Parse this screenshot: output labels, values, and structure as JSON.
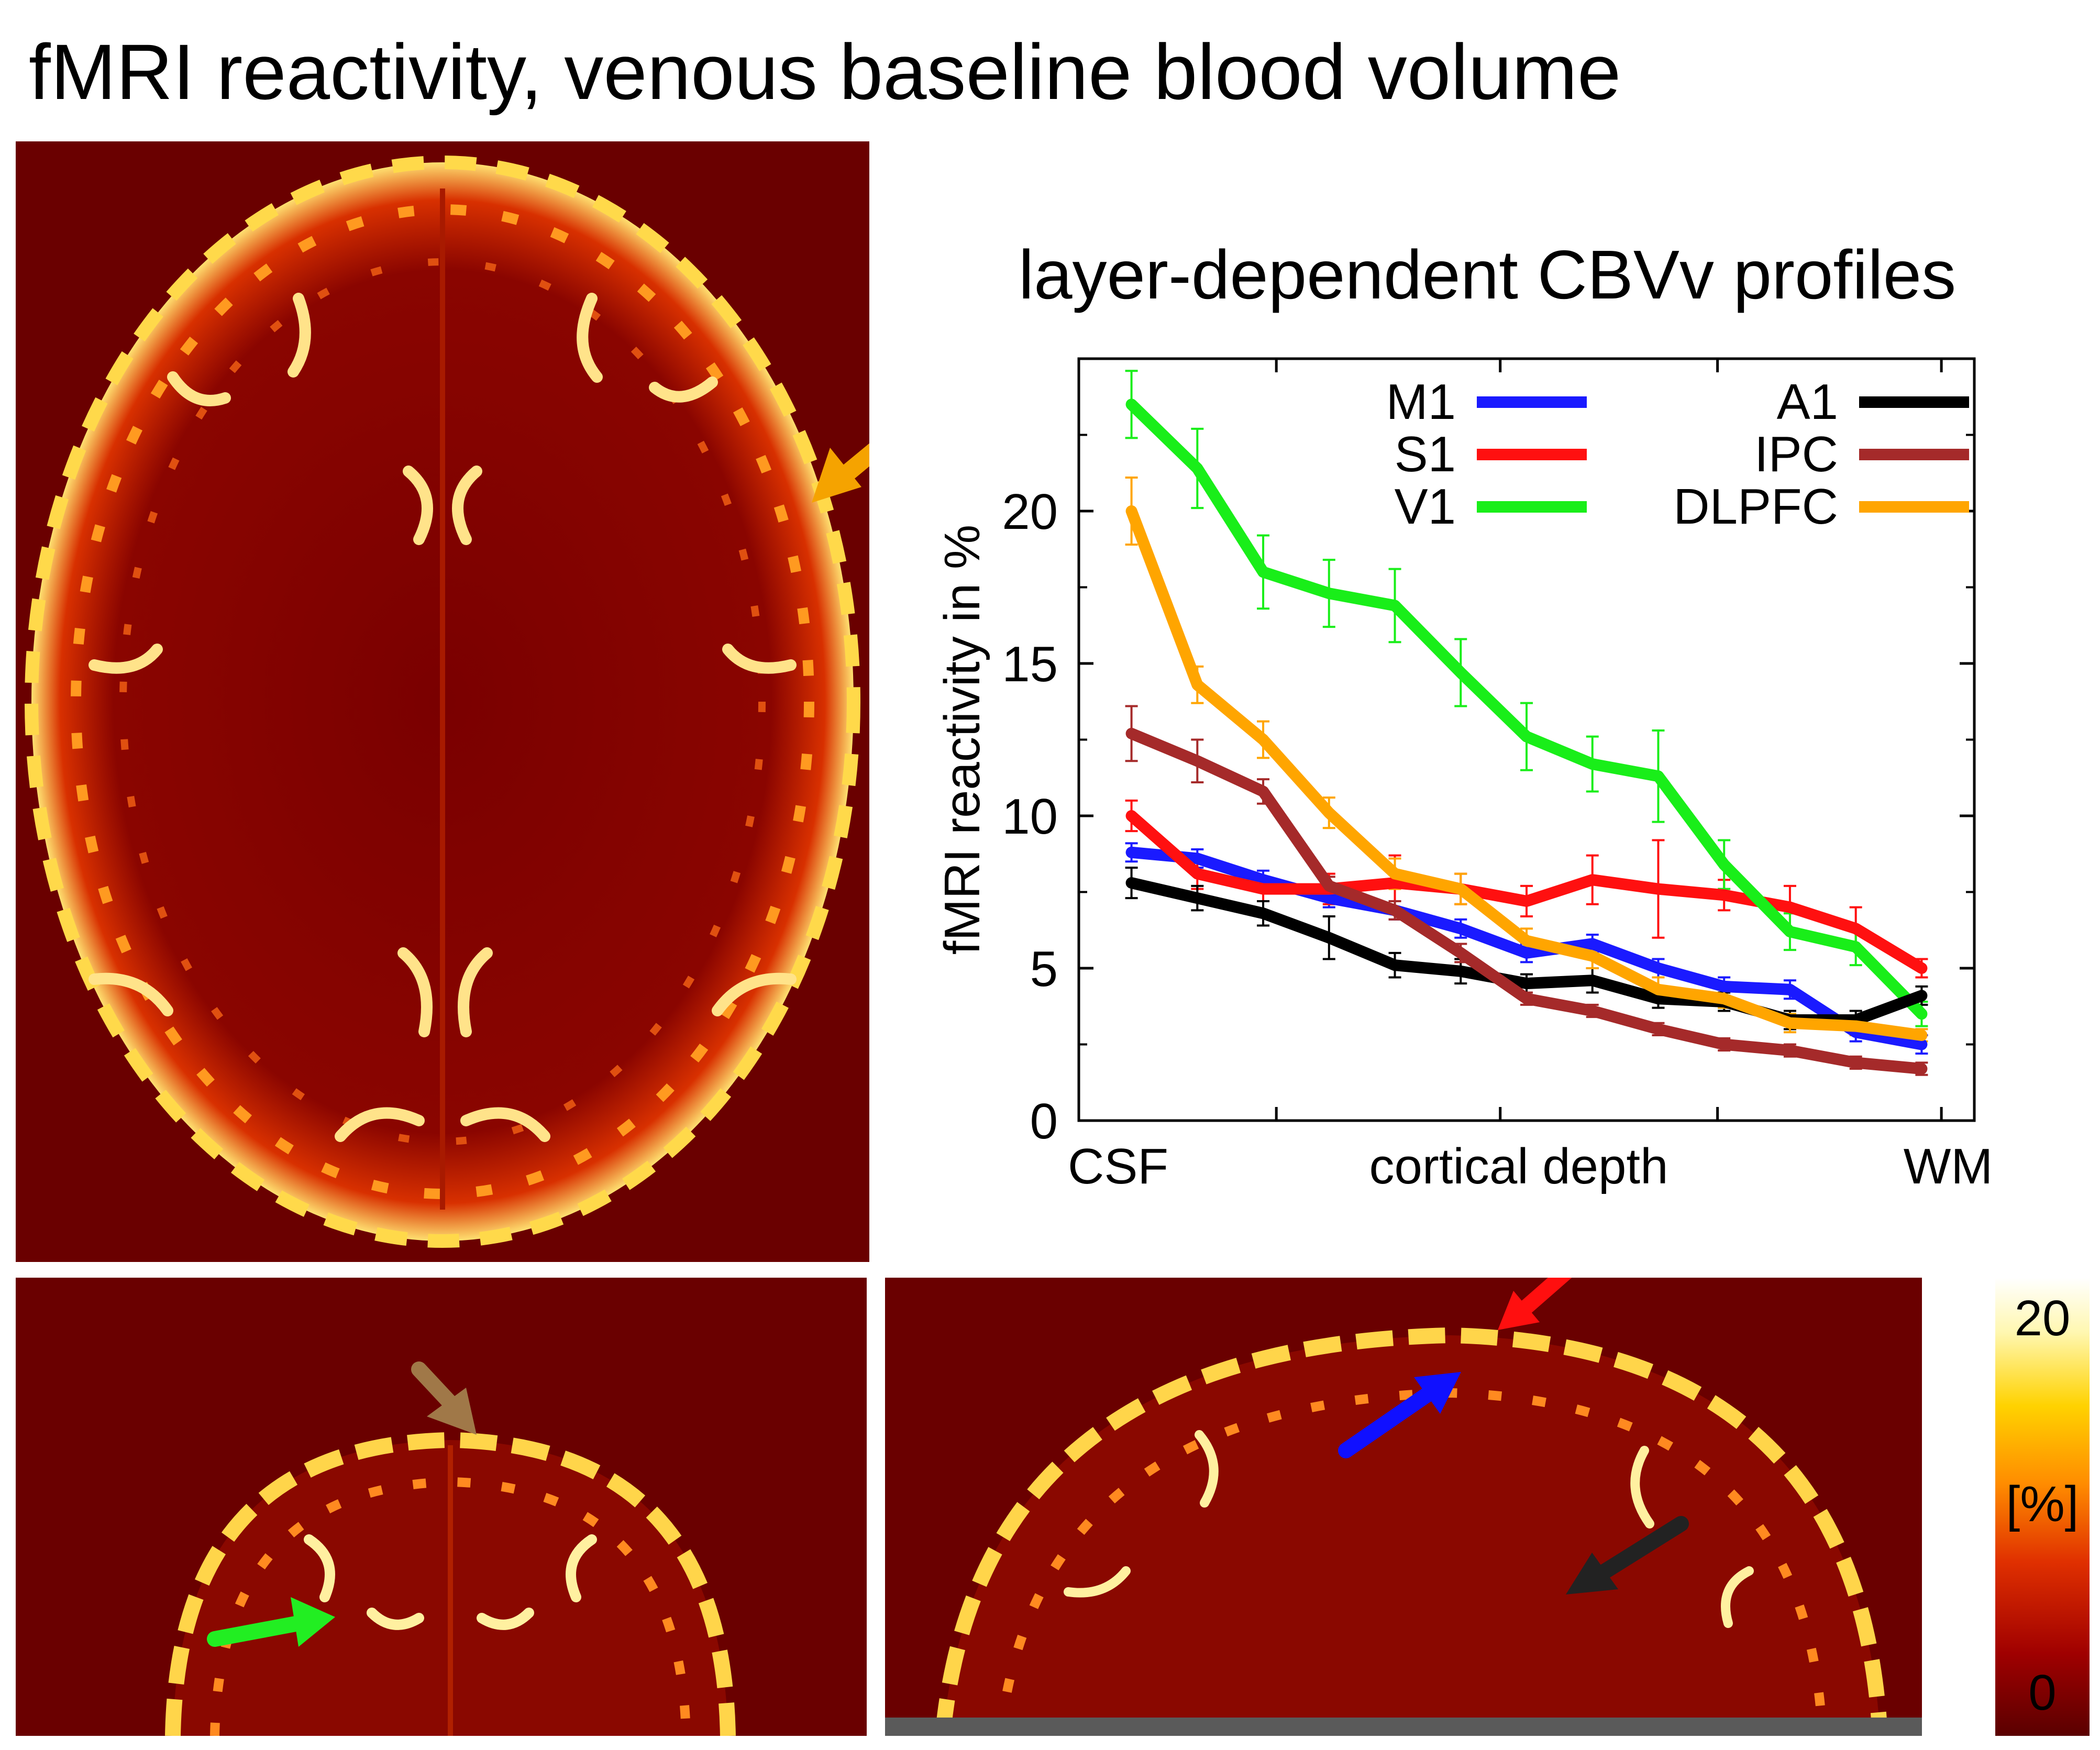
{
  "title": "fMRI reactivity, venous baseline blood volume",
  "colorbar": {
    "max_label": "20",
    "unit_label": "[%]",
    "min_label": "0"
  },
  "arrows": {
    "axial": {
      "color": "#f5a300"
    },
    "coronal": [
      {
        "color": "#a07848"
      },
      {
        "color": "#22ee22"
      }
    ],
    "sagittal": [
      {
        "color": "#ff0f0f"
      },
      {
        "color": "#1010ff"
      },
      {
        "color": "#222222"
      }
    ]
  },
  "chart_data": {
    "type": "line",
    "title": "layer-dependent CBVv profiles",
    "xlabel": "cortical depth",
    "ylabel": "fMRI reactivity in %",
    "x_tick_labels": {
      "left": "CSF",
      "right": "WM"
    },
    "ylim": [
      0,
      25
    ],
    "y_ticks": [
      0,
      5,
      10,
      15,
      20
    ],
    "x": [
      1,
      2,
      3,
      4,
      5,
      6,
      7,
      8,
      9,
      10,
      11,
      12,
      13
    ],
    "series": [
      {
        "name": "M1",
        "color": "#1a1aff",
        "values": [
          8.8,
          8.6,
          7.9,
          7.3,
          6.9,
          6.3,
          5.5,
          5.8,
          5.0,
          4.4,
          4.3,
          2.9,
          2.5
        ],
        "errors": [
          0.3,
          0.3,
          0.3,
          0.3,
          0.3,
          0.3,
          0.3,
          0.3,
          0.3,
          0.3,
          0.3,
          0.3,
          0.3
        ]
      },
      {
        "name": "S1",
        "color": "#ff1010",
        "values": [
          10.0,
          8.1,
          7.6,
          7.6,
          7.8,
          7.6,
          7.2,
          7.9,
          7.6,
          7.4,
          7.0,
          6.3,
          5.0
        ],
        "errors": [
          0.5,
          0.5,
          0.4,
          0.5,
          0.9,
          0.5,
          0.5,
          0.8,
          1.6,
          0.5,
          0.7,
          0.7,
          0.3
        ]
      },
      {
        "name": "V1",
        "color": "#19ee19",
        "values": [
          23.5,
          21.4,
          18.0,
          17.3,
          16.9,
          14.7,
          12.6,
          11.7,
          11.3,
          8.4,
          6.2,
          5.7,
          3.5
        ],
        "errors": [
          1.1,
          1.3,
          1.2,
          1.1,
          1.2,
          1.1,
          1.1,
          0.9,
          1.5,
          0.8,
          0.6,
          0.6,
          0.4
        ]
      },
      {
        "name": "A1",
        "color": "#000000",
        "values": [
          7.8,
          7.3,
          6.8,
          6.0,
          5.1,
          4.9,
          4.5,
          4.6,
          4.0,
          3.9,
          3.3,
          3.3,
          4.1
        ],
        "errors": [
          0.5,
          0.4,
          0.4,
          0.7,
          0.4,
          0.4,
          0.3,
          0.4,
          0.3,
          0.3,
          0.3,
          0.3,
          0.3
        ]
      },
      {
        "name": "IPC",
        "color": "#a52a2a",
        "values": [
          12.7,
          11.8,
          10.8,
          7.7,
          6.9,
          5.5,
          4.0,
          3.6,
          3.0,
          2.5,
          2.3,
          1.9,
          1.7
        ],
        "errors": [
          0.9,
          0.7,
          0.4,
          0.3,
          0.3,
          0.3,
          0.2,
          0.2,
          0.2,
          0.2,
          0.2,
          0.2,
          0.2
        ]
      },
      {
        "name": "DLPFC",
        "color": "#ffa500",
        "values": [
          20.0,
          14.3,
          12.5,
          10.1,
          8.1,
          7.6,
          5.9,
          5.4,
          4.3,
          4.0,
          3.2,
          3.1,
          2.8
        ],
        "errors": [
          1.1,
          0.6,
          0.6,
          0.5,
          0.5,
          0.5,
          0.4,
          0.4,
          0.4,
          0.3,
          0.3,
          0.3,
          0.2
        ]
      }
    ],
    "legend": "top"
  }
}
